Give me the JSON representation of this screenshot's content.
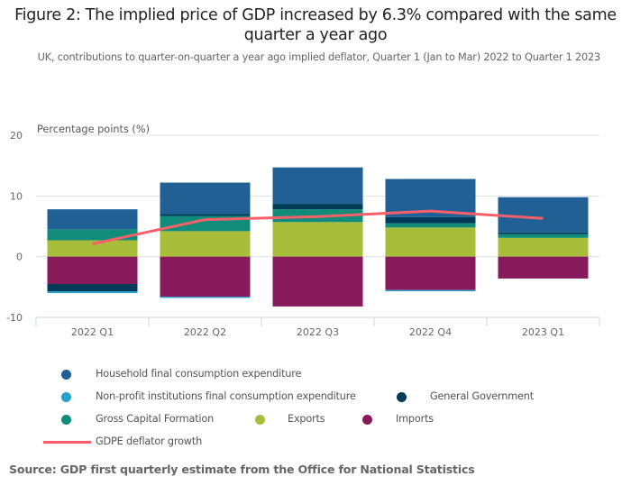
{
  "chart_data": {
    "type": "bar",
    "stacked": true,
    "title": "Figure 2: The implied price of GDP increased by 6.3% compared with the same quarter a year ago",
    "subtitle": "UK, contributions to quarter-on-quarter a year ago implied deflator, Quarter 1 (Jan to Mar) 2022 to Quarter 1 2023",
    "ylabel": "Percentage points (%)",
    "xlabel": "",
    "ylim": [
      -10,
      20
    ],
    "yticks": [
      20,
      10,
      0,
      -10
    ],
    "ytick_labels": [
      "20",
      "10",
      "0",
      "-10"
    ],
    "grid": true,
    "categories": [
      "2022 Q1",
      "2022 Q2",
      "2022 Q3",
      "2022 Q4",
      "2023 Q1"
    ],
    "series": [
      {
        "name": "Household final consumption expenditure",
        "color": "#206095",
        "values": [
          3.3,
          5.2,
          6.0,
          6.3,
          5.8
        ]
      },
      {
        "name": "Non-profit institutions final consumption expenditure",
        "color": "#27a0cc",
        "values": [
          -0.3,
          -0.2,
          0.0,
          -0.2,
          0.0
        ]
      },
      {
        "name": "General Government",
        "color": "#003c57",
        "values": [
          -1.2,
          0.3,
          0.9,
          1.0,
          0.3
        ]
      },
      {
        "name": "Gross Capital Formation",
        "color": "#118c7b",
        "values": [
          1.8,
          2.5,
          2.1,
          0.7,
          0.6
        ]
      },
      {
        "name": "Exports",
        "color": "#a8bd3a",
        "values": [
          2.7,
          4.2,
          5.7,
          4.8,
          3.1
        ]
      },
      {
        "name": "Imports",
        "color": "#871a5b",
        "values": [
          -4.5,
          -6.6,
          -8.2,
          -5.5,
          -3.6
        ]
      }
    ],
    "line_series": {
      "name": "GDPE deflator growth",
      "color": "#f66068",
      "values": [
        2.1,
        6.1,
        6.6,
        7.5,
        6.3
      ]
    },
    "legend": "bottom",
    "source": "Source: GDP first quarterly estimate from the Office for National Statistics"
  }
}
